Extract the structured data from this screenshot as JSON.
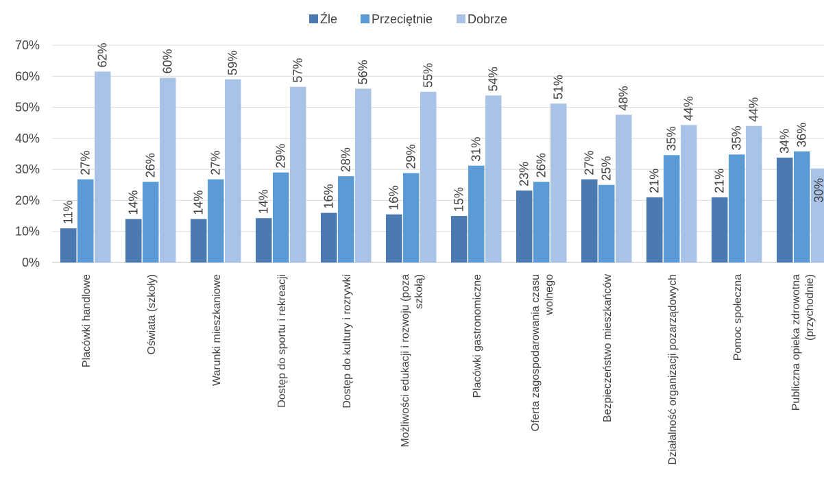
{
  "chart_data": {
    "type": "bar",
    "categories": [
      [
        "Placówki handlowe"
      ],
      [
        "Oświata (szkoły)"
      ],
      [
        "Warunki mieszkaniowe"
      ],
      [
        "Dostęp do sportu i rekreacji"
      ],
      [
        "Dostęp do kultury i rozrywki"
      ],
      [
        "Możliwości edukacji i rozwoju (poza",
        "szkołą)"
      ],
      [
        "Placówki gastronomiczne"
      ],
      [
        "Oferta zagospodarowania czasu",
        "wolnego"
      ],
      [
        "Bezpieczeństwo mieszkańców"
      ],
      [
        "Działalność organizacji pozarządowych"
      ],
      [
        "Pomoc społeczna"
      ],
      [
        "Publiczna opieka zdrowotna",
        "(przychodnie)"
      ]
    ],
    "series": [
      {
        "name": "Źle",
        "color": "#4a7ab0",
        "values": [
          11,
          14,
          14,
          14,
          16,
          16,
          15,
          23,
          27,
          21,
          21,
          34
        ]
      },
      {
        "name": "Przeciętnie",
        "color": "#5b9bd5",
        "values": [
          27,
          26,
          27,
          29,
          28,
          29,
          31,
          26,
          25,
          35,
          35,
          36
        ]
      },
      {
        "name": "Dobrze",
        "color": "#a9c3e6",
        "values": [
          62,
          60,
          59,
          57,
          56,
          55,
          54,
          51,
          48,
          44,
          44,
          30
        ]
      }
    ],
    "bar_values": [
      [
        11,
        14,
        14,
        14.3,
        16,
        15.5,
        15,
        23.2,
        26.8,
        21,
        21,
        33.8
      ],
      [
        26.8,
        26,
        26.8,
        29,
        27.8,
        28.8,
        31.2,
        26,
        25,
        34.6,
        34.8,
        35.8
      ],
      [
        61.5,
        59.5,
        59,
        56.6,
        56,
        55,
        53.8,
        51.2,
        47.6,
        44.3,
        44,
        30.3
      ]
    ],
    "value_suffix": "%",
    "yticks": [
      "0%",
      "10%",
      "20%",
      "30%",
      "40%",
      "50%",
      "60%",
      "70%"
    ],
    "ylim": [
      0,
      70
    ],
    "grid": true,
    "legend_position": "top-center"
  }
}
